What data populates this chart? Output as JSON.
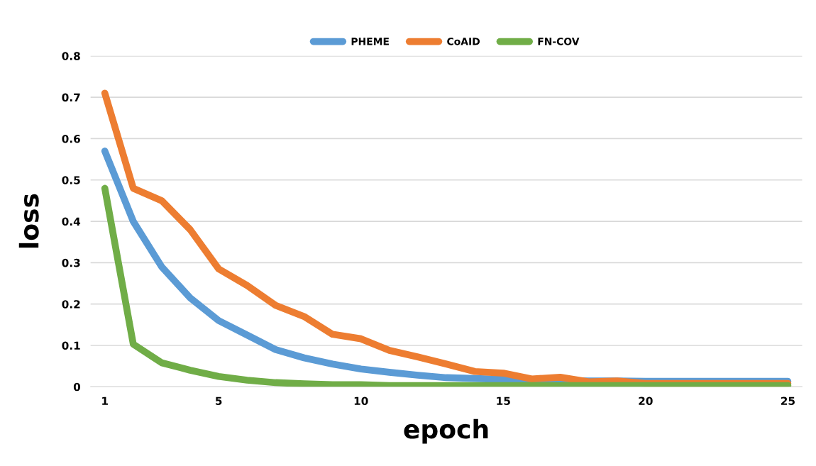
{
  "chart_data": {
    "type": "line",
    "xlabel": "epoch",
    "ylabel": "loss",
    "x": [
      1,
      2,
      3,
      4,
      5,
      6,
      7,
      8,
      9,
      10,
      11,
      12,
      13,
      14,
      15,
      16,
      17,
      18,
      19,
      20,
      21,
      22,
      23,
      24,
      25
    ],
    "series": [
      {
        "name": "PHEME",
        "color": "#5b9bd5",
        "values": [
          0.57,
          0.4,
          0.29,
          0.215,
          0.16,
          0.125,
          0.09,
          0.07,
          0.055,
          0.043,
          0.035,
          0.028,
          0.022,
          0.02,
          0.018,
          0.015,
          0.015,
          0.014,
          0.014,
          0.013,
          0.013,
          0.013,
          0.013,
          0.013,
          0.013
        ]
      },
      {
        "name": "CoAID",
        "color": "#ed7d31",
        "values": [
          0.71,
          0.48,
          0.45,
          0.38,
          0.285,
          0.245,
          0.197,
          0.17,
          0.127,
          0.116,
          0.088,
          0.072,
          0.055,
          0.037,
          0.033,
          0.019,
          0.023,
          0.012,
          0.014,
          0.008,
          0.008,
          0.008,
          0.008,
          0.008,
          0.008
        ]
      },
      {
        "name": "FN-COV",
        "color": "#70ad47",
        "values": [
          0.48,
          0.103,
          0.058,
          0.04,
          0.025,
          0.016,
          0.01,
          0.007,
          0.005,
          0.005,
          0.003,
          0.003,
          0.003,
          0.003,
          0.003,
          0.003,
          0.003,
          0.003,
          0.003,
          0.003,
          0.003,
          0.003,
          0.003,
          0.003,
          0.003
        ]
      }
    ],
    "xlim": [
      0.5,
      25.5
    ],
    "xticks": [
      1,
      5,
      10,
      15,
      20,
      25
    ],
    "ylim": [
      0,
      0.8
    ],
    "yticks": [
      0,
      0.1,
      0.2,
      0.3,
      0.4,
      0.5,
      0.6,
      0.7,
      0.8
    ],
    "grid": "y",
    "legend": "top",
    "marker": "none",
    "line_style": "solid"
  }
}
